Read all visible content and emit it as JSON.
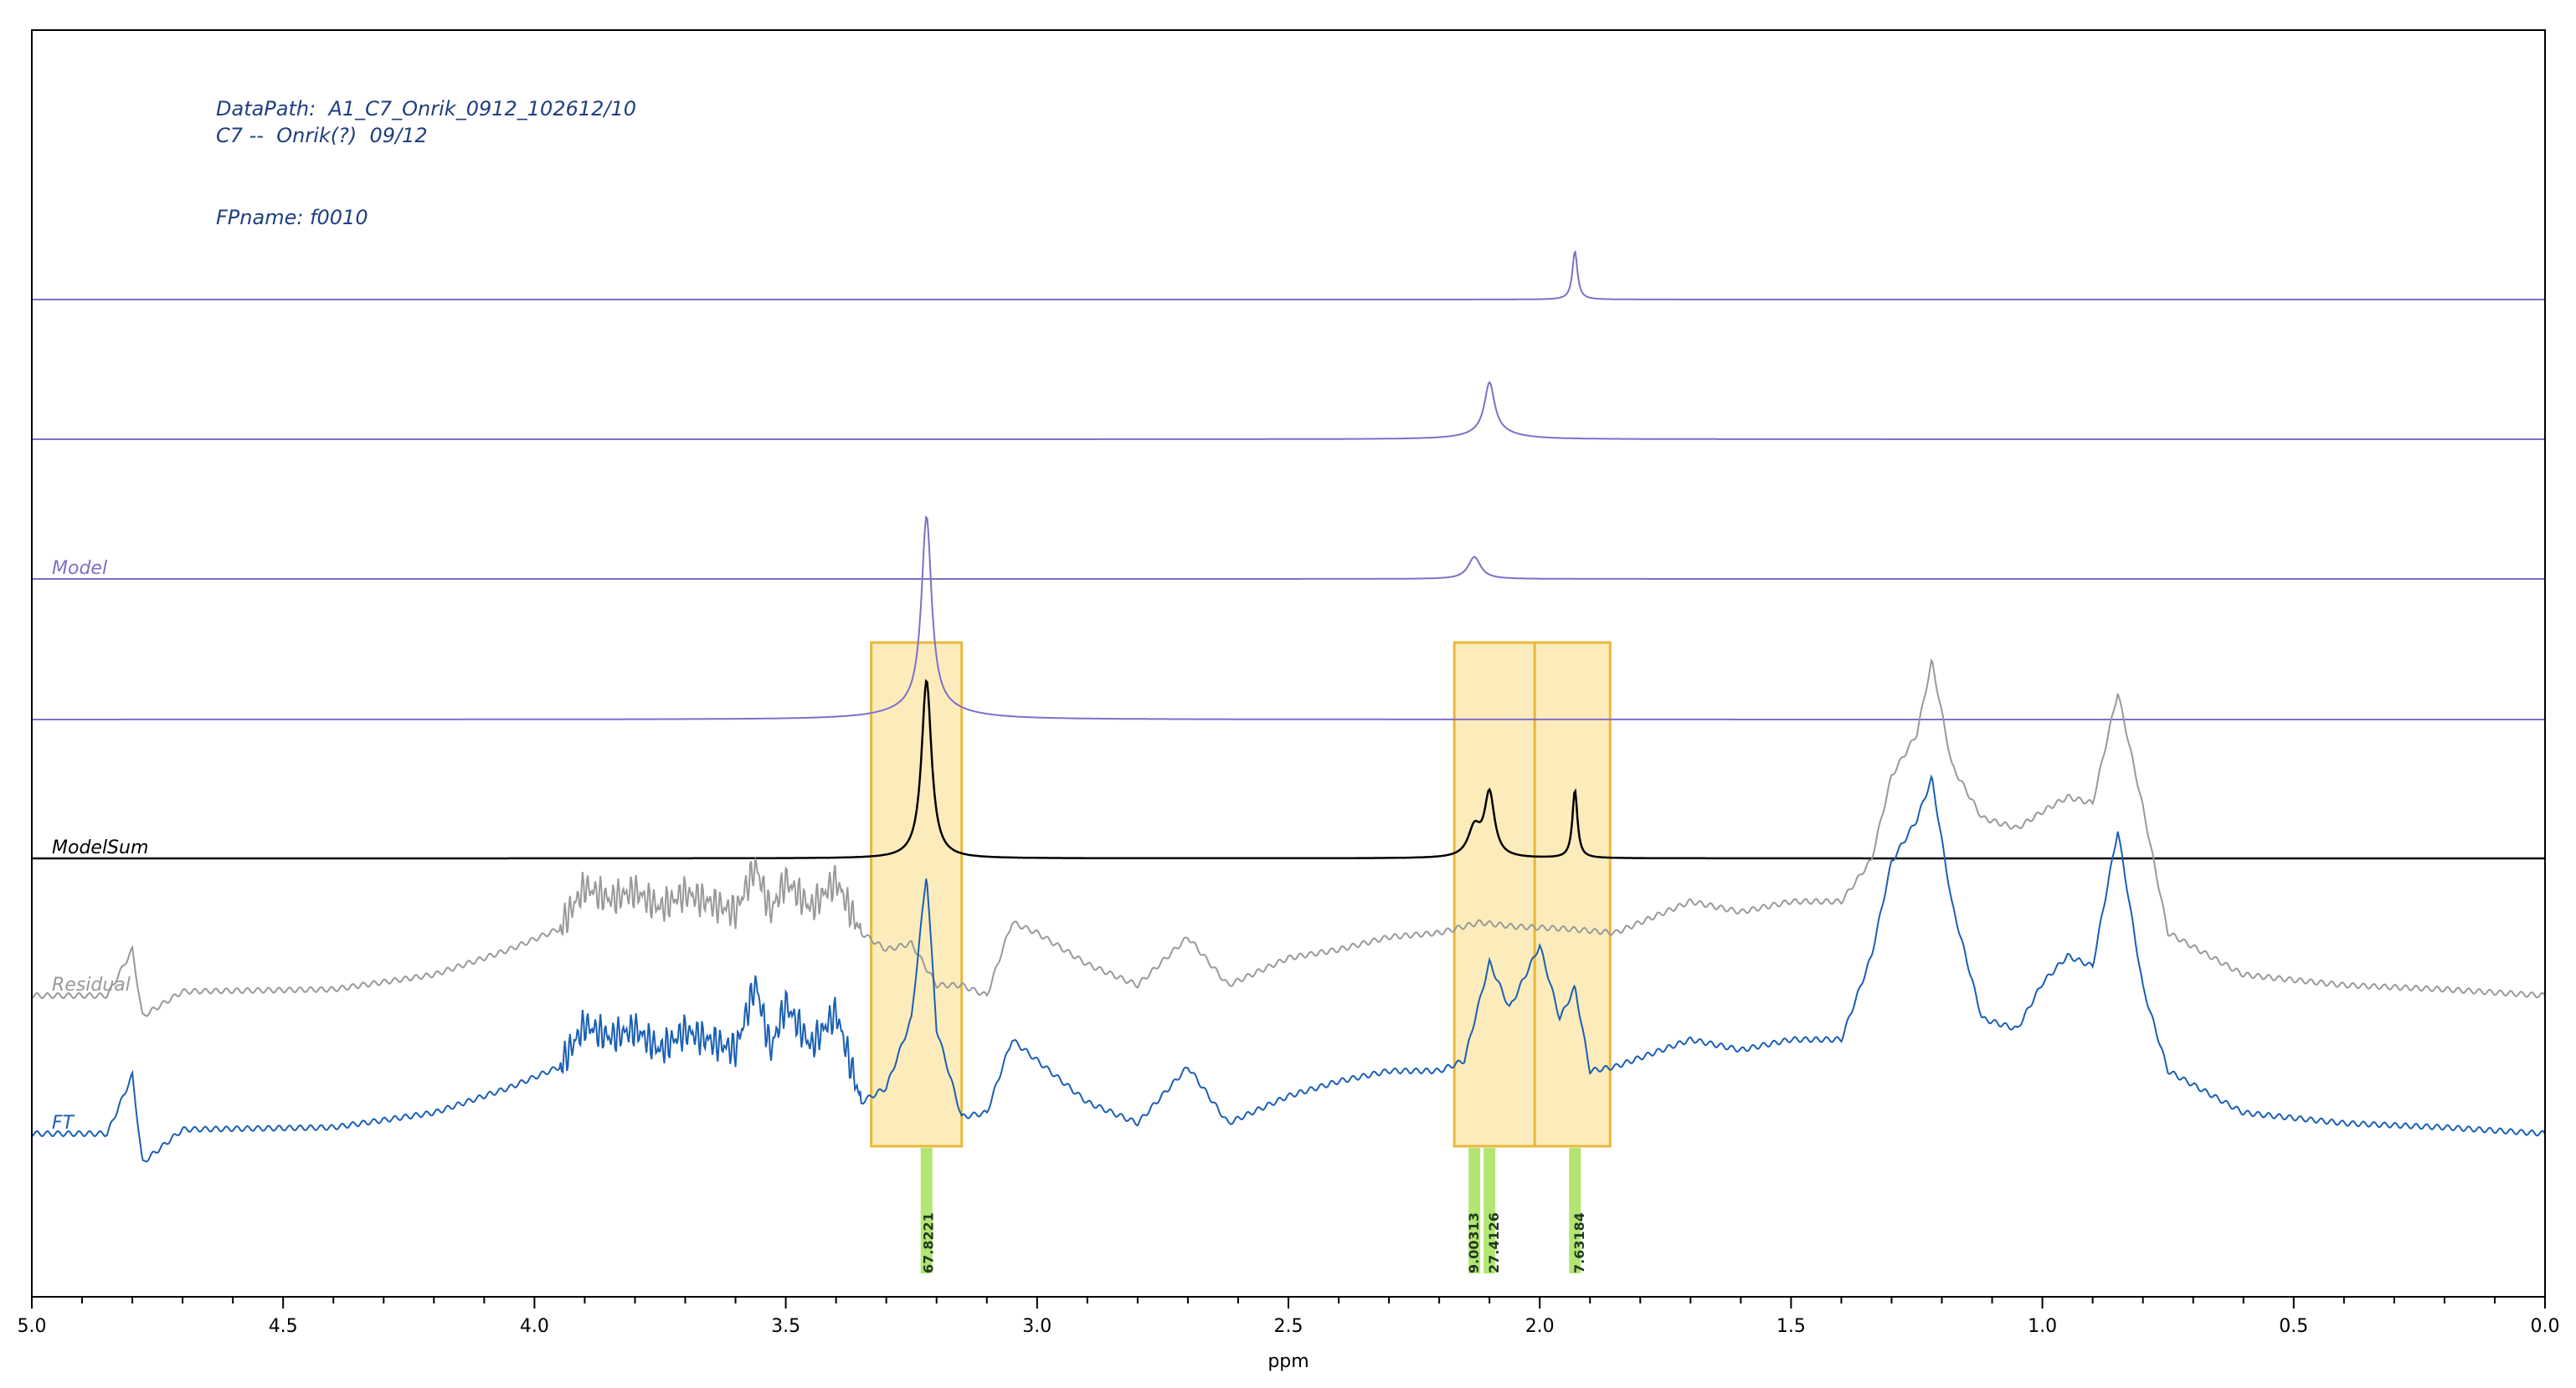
{
  "header": {
    "datapath": "DataPath:  A1_C7_Onrik_0912_102612/10",
    "sample": "C7 --  Onrik(?)  09/12",
    "fpname": "FPname: f0010"
  },
  "colors": {
    "model": "#7f6fc8",
    "modelsum": "#000000",
    "residual": "#999999",
    "ft": "#1a5fb4",
    "highlight_fill": "#fbe6a6",
    "highlight_stroke": "#e9b83a",
    "integral": "#a6e05a"
  },
  "chart_data": {
    "type": "line",
    "title": "",
    "xlabel": "ppm",
    "ylabel": "",
    "xlim": [
      5.0,
      0.0
    ],
    "x_reversed": true,
    "x_ticks": [
      "5.0",
      "4.5",
      "4.0",
      "3.5",
      "3.0",
      "2.5",
      "2.0",
      "1.5",
      "1.0",
      "0.5",
      "0.0"
    ],
    "x_tick_values": [
      5.0,
      4.5,
      4.0,
      3.5,
      3.0,
      2.5,
      2.0,
      1.5,
      1.0,
      0.5,
      0.0
    ],
    "grid": false,
    "series": [
      {
        "name": "",
        "group": "Model",
        "color": "#7f6fc8",
        "baseline": 0,
        "peaks": [
          {
            "ppm": 1.93,
            "height": 0.29,
            "width": 0.006
          }
        ]
      },
      {
        "name": "",
        "group": "Model",
        "color": "#7f6fc8",
        "baseline": 0,
        "peaks": [
          {
            "ppm": 2.1,
            "height": 0.27,
            "width": 0.012
          },
          {
            "ppm": 2.095,
            "height": 0.04,
            "width": 0.05
          }
        ]
      },
      {
        "name": "Model",
        "color": "#7f6fc8",
        "baseline": 0,
        "peaks": [
          {
            "ppm": 2.13,
            "height": 0.12,
            "width": 0.015
          }
        ]
      },
      {
        "name": "",
        "group": "Model",
        "color": "#7f6fc8",
        "baseline": 0,
        "peaks": [
          {
            "ppm": 3.22,
            "height": 0.76,
            "width": 0.012
          },
          {
            "ppm": 3.22,
            "height": 0.05,
            "width": 0.08
          }
        ]
      },
      {
        "name": "ModelSum",
        "color": "#000000",
        "baseline": 0,
        "peaks": [
          {
            "ppm": 3.22,
            "height": 0.76,
            "width": 0.012
          },
          {
            "ppm": 2.13,
            "height": 0.12,
            "width": 0.015
          },
          {
            "ppm": 2.1,
            "height": 0.27,
            "width": 0.012
          },
          {
            "ppm": 1.93,
            "height": 0.29,
            "width": 0.006
          }
        ]
      },
      {
        "name": "Residual",
        "color": "#999999",
        "profile": [
          [
            5.0,
            0.0
          ],
          [
            4.85,
            0.0
          ],
          [
            4.8,
            0.22
          ],
          [
            4.78,
            -0.1
          ],
          [
            4.7,
            0.02
          ],
          [
            4.4,
            0.03
          ],
          [
            4.2,
            0.1
          ],
          [
            4.05,
            0.22
          ],
          [
            3.95,
            0.32
          ],
          [
            3.9,
            0.52
          ],
          [
            3.85,
            0.46
          ],
          [
            3.8,
            0.5
          ],
          [
            3.75,
            0.42
          ],
          [
            3.7,
            0.49
          ],
          [
            3.6,
            0.4
          ],
          [
            3.56,
            0.62
          ],
          [
            3.53,
            0.4
          ],
          [
            3.5,
            0.55
          ],
          [
            3.45,
            0.42
          ],
          [
            3.4,
            0.55
          ],
          [
            3.35,
            0.3
          ],
          [
            3.3,
            0.22
          ],
          [
            3.25,
            0.25
          ],
          [
            3.2,
            0.05
          ],
          [
            3.15,
            0.05
          ],
          [
            3.1,
            0.0
          ],
          [
            3.05,
            0.35
          ],
          [
            3.0,
            0.3
          ],
          [
            2.9,
            0.15
          ],
          [
            2.8,
            0.05
          ],
          [
            2.7,
            0.28
          ],
          [
            2.62,
            0.05
          ],
          [
            2.5,
            0.18
          ],
          [
            2.4,
            0.22
          ],
          [
            2.3,
            0.28
          ],
          [
            2.2,
            0.3
          ],
          [
            2.12,
            0.35
          ],
          [
            2.05,
            0.33
          ],
          [
            1.95,
            0.32
          ],
          [
            1.85,
            0.3
          ],
          [
            1.7,
            0.45
          ],
          [
            1.6,
            0.4
          ],
          [
            1.5,
            0.45
          ],
          [
            1.4,
            0.45
          ],
          [
            1.34,
            0.65
          ],
          [
            1.3,
            1.05
          ],
          [
            1.25,
            1.25
          ],
          [
            1.22,
            1.6
          ],
          [
            1.18,
            1.1
          ],
          [
            1.12,
            0.85
          ],
          [
            1.05,
            0.8
          ],
          [
            1.0,
            0.88
          ],
          [
            0.95,
            0.95
          ],
          [
            0.9,
            0.92
          ],
          [
            0.85,
            1.45
          ],
          [
            0.8,
            0.9
          ],
          [
            0.75,
            0.3
          ],
          [
            0.6,
            0.1
          ],
          [
            0.4,
            0.05
          ],
          [
            0.2,
            0.03
          ],
          [
            0.0,
            0.0
          ]
        ]
      },
      {
        "name": "FT",
        "color": "#1a5fb4",
        "profile": [
          [
            5.0,
            0.0
          ],
          [
            4.85,
            0.0
          ],
          [
            4.8,
            0.28
          ],
          [
            4.78,
            -0.14
          ],
          [
            4.7,
            0.02
          ],
          [
            4.4,
            0.03
          ],
          [
            4.2,
            0.1
          ],
          [
            4.05,
            0.22
          ],
          [
            3.95,
            0.32
          ],
          [
            3.9,
            0.52
          ],
          [
            3.85,
            0.46
          ],
          [
            3.8,
            0.5
          ],
          [
            3.75,
            0.4
          ],
          [
            3.7,
            0.49
          ],
          [
            3.6,
            0.4
          ],
          [
            3.56,
            0.72
          ],
          [
            3.53,
            0.4
          ],
          [
            3.5,
            0.62
          ],
          [
            3.45,
            0.42
          ],
          [
            3.4,
            0.58
          ],
          [
            3.35,
            0.15
          ],
          [
            3.3,
            0.22
          ],
          [
            3.25,
            0.55
          ],
          [
            3.22,
            1.25
          ],
          [
            3.2,
            0.5
          ],
          [
            3.15,
            0.08
          ],
          [
            3.1,
            0.1
          ],
          [
            3.05,
            0.45
          ],
          [
            3.0,
            0.35
          ],
          [
            2.9,
            0.15
          ],
          [
            2.8,
            0.05
          ],
          [
            2.7,
            0.32
          ],
          [
            2.62,
            0.05
          ],
          [
            2.5,
            0.18
          ],
          [
            2.4,
            0.25
          ],
          [
            2.3,
            0.3
          ],
          [
            2.2,
            0.3
          ],
          [
            2.15,
            0.35
          ],
          [
            2.1,
            0.82
          ],
          [
            2.06,
            0.6
          ],
          [
            2.0,
            0.9
          ],
          [
            1.96,
            0.55
          ],
          [
            1.93,
            0.7
          ],
          [
            1.9,
            0.3
          ],
          [
            1.85,
            0.32
          ],
          [
            1.7,
            0.45
          ],
          [
            1.6,
            0.4
          ],
          [
            1.5,
            0.45
          ],
          [
            1.4,
            0.45
          ],
          [
            1.34,
            0.85
          ],
          [
            1.3,
            1.3
          ],
          [
            1.25,
            1.5
          ],
          [
            1.22,
            1.7
          ],
          [
            1.18,
            1.1
          ],
          [
            1.12,
            0.55
          ],
          [
            1.05,
            0.5
          ],
          [
            1.0,
            0.72
          ],
          [
            0.95,
            0.85
          ],
          [
            0.9,
            0.8
          ],
          [
            0.85,
            1.45
          ],
          [
            0.8,
            0.7
          ],
          [
            0.75,
            0.3
          ],
          [
            0.6,
            0.1
          ],
          [
            0.4,
            0.05
          ],
          [
            0.2,
            0.03
          ],
          [
            0.0,
            0.0
          ]
        ]
      }
    ],
    "highlight_regions": [
      {
        "start": 3.33,
        "end": 3.15
      },
      {
        "start": 2.17,
        "end": 2.01
      },
      {
        "start": 2.01,
        "end": 1.86
      }
    ],
    "integrals": [
      {
        "ppm": 3.22,
        "label": "67.8221",
        "label_ppm": 3.22
      },
      {
        "ppm": 2.13,
        "label": "9.00313",
        "label_ppm": 2.135
      },
      {
        "ppm": 2.1,
        "label": "27.4126",
        "label_ppm": 2.095
      },
      {
        "ppm": 1.93,
        "label": "7.63184",
        "label_ppm": 1.925
      }
    ]
  }
}
